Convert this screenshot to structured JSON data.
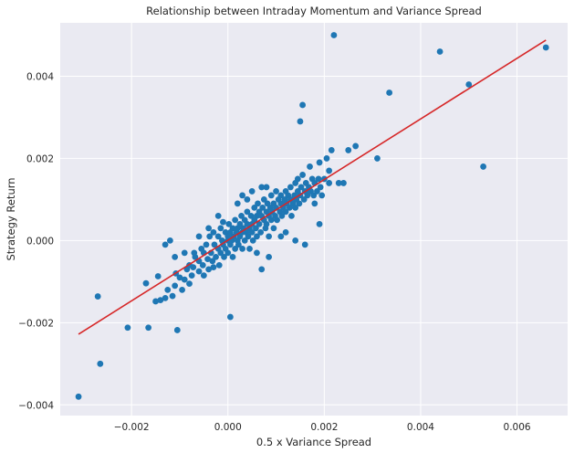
{
  "chart_data": {
    "type": "scatter",
    "title": "Relationship between Intraday Momentum and Variance Spread",
    "xlabel": "0.5 x Variance Spread",
    "ylabel": "Strategy Return",
    "xlim": [
      -0.00348,
      0.00705
    ],
    "ylim": [
      -0.00426,
      0.0053
    ],
    "x_ticks": [
      -0.002,
      0.0,
      0.002,
      0.004,
      0.006
    ],
    "x_tick_labels": [
      "−0.002",
      "0.000",
      "0.002",
      "0.004",
      "0.006"
    ],
    "y_ticks": [
      -0.004,
      -0.002,
      0.0,
      0.002,
      0.004
    ],
    "y_tick_labels": [
      "−0.004",
      "−0.002",
      "0.000",
      "0.002",
      "0.004"
    ],
    "grid": true,
    "background_color": "#eaeaf2",
    "point_color": "#1f77b4",
    "line_color": "#d62728",
    "fit_line": {
      "x": [
        -0.0031,
        0.0066
      ],
      "y": [
        -0.00228,
        0.00488
      ]
    },
    "points": [
      [
        -0.0031,
        -0.0038
      ],
      [
        -0.00265,
        -0.003
      ],
      [
        -0.0027,
        -0.00136
      ],
      [
        -0.00208,
        -0.00212
      ],
      [
        -0.00165,
        -0.00212
      ],
      [
        -0.00105,
        -0.00218
      ],
      [
        5e-05,
        -0.00186
      ],
      [
        -0.0017,
        -0.00104
      ],
      [
        -0.00145,
        -0.00087
      ],
      [
        -0.0015,
        -0.00148
      ],
      [
        -0.0014,
        -0.00145
      ],
      [
        -0.0013,
        -0.0014
      ],
      [
        -0.00125,
        -0.0012
      ],
      [
        -0.00115,
        -0.00135
      ],
      [
        -0.0011,
        -0.0011
      ],
      [
        -0.00108,
        -0.0008
      ],
      [
        -0.001,
        -0.0009
      ],
      [
        -0.00095,
        -0.0012
      ],
      [
        -0.0009,
        -0.00095
      ],
      [
        -0.00085,
        -0.0007
      ],
      [
        -0.0008,
        -0.0006
      ],
      [
        -0.0008,
        -0.00105
      ],
      [
        -0.00075,
        -0.00085
      ],
      [
        -0.00072,
        -0.00065
      ],
      [
        -0.0007,
        -0.0003
      ],
      [
        -0.00068,
        -0.0004
      ],
      [
        -0.0006,
        -0.0005
      ],
      [
        -0.0006,
        -0.00075
      ],
      [
        -0.00055,
        -0.0002
      ],
      [
        -0.00052,
        -0.0006
      ],
      [
        -0.0005,
        -0.0003
      ],
      [
        -0.0005,
        -0.00085
      ],
      [
        -0.00045,
        -0.0001
      ],
      [
        -0.00042,
        -0.00045
      ],
      [
        -0.0004,
        -0.0007
      ],
      [
        -0.00038,
        0.0001
      ],
      [
        -0.00035,
        -0.0003
      ],
      [
        -0.00032,
        -0.0005
      ],
      [
        -0.0003,
        0.0002
      ],
      [
        -0.0003,
        -0.00065
      ],
      [
        -0.00028,
        -0.0001
      ],
      [
        -0.00025,
        -0.0004
      ],
      [
        -0.0002,
        0.0001
      ],
      [
        -0.0002,
        -0.0002
      ],
      [
        -0.00018,
        -0.0006
      ],
      [
        -0.00015,
        0.0003
      ],
      [
        -0.00015,
        -0.0003
      ],
      [
        -0.00012,
        0.0
      ],
      [
        -0.0001,
        -0.0001
      ],
      [
        -0.0001,
        0.00045
      ],
      [
        -8e-05,
        -0.0004
      ],
      [
        -5e-05,
        0.0002
      ],
      [
        -5e-05,
        -0.0002
      ],
      [
        0.0,
        0.0
      ],
      [
        0.0,
        0.0001
      ],
      [
        0.0,
        -0.0003
      ],
      [
        2e-05,
        0.0004
      ],
      [
        5e-05,
        -0.0001
      ],
      [
        5e-05,
        0.0002
      ],
      [
        8e-05,
        0.0
      ],
      [
        0.0001,
        -0.0004
      ],
      [
        0.0001,
        0.0003
      ],
      [
        0.00012,
        0.0001
      ],
      [
        0.00015,
        -0.0002
      ],
      [
        0.00015,
        0.0005
      ],
      [
        0.00018,
        0.0002
      ],
      [
        0.0002,
        0.0
      ],
      [
        0.0002,
        0.0003
      ],
      [
        0.00022,
        -0.0001
      ],
      [
        0.00025,
        0.0004
      ],
      [
        0.00025,
        0.0001
      ],
      [
        0.00028,
        0.0006
      ],
      [
        0.0003,
        0.0002
      ],
      [
        0.0003,
        -0.0002
      ],
      [
        0.00032,
        0.0003
      ],
      [
        0.00035,
        0.0
      ],
      [
        0.00035,
        0.0005
      ],
      [
        0.00038,
        0.0002
      ],
      [
        0.0004,
        0.0007
      ],
      [
        0.0004,
        0.0004
      ],
      [
        0.00042,
        0.0001
      ],
      [
        0.00045,
        0.0003
      ],
      [
        0.00045,
        -0.0002
      ],
      [
        0.00048,
        0.0006
      ],
      [
        0.0005,
        0.0002
      ],
      [
        0.0005,
        0.0004
      ],
      [
        0.00052,
        0.0
      ],
      [
        0.00055,
        0.0005
      ],
      [
        0.00055,
        0.0008
      ],
      [
        0.00058,
        0.0003
      ],
      [
        0.0006,
        0.0001
      ],
      [
        0.0006,
        0.0006
      ],
      [
        0.00062,
        0.0009
      ],
      [
        0.00065,
        0.0004
      ],
      [
        0.00065,
        0.0007
      ],
      [
        0.00068,
        0.0002
      ],
      [
        0.0007,
        -0.0007
      ],
      [
        0.0007,
        0.0006
      ],
      [
        0.00072,
        0.0008
      ],
      [
        0.00075,
        0.0005
      ],
      [
        0.00075,
        0.001
      ],
      [
        0.00078,
        0.0003
      ],
      [
        0.0008,
        0.0007
      ],
      [
        0.0008,
        0.0004
      ],
      [
        0.00082,
        0.0009
      ],
      [
        0.00085,
        0.0006
      ],
      [
        0.00085,
        0.0001
      ],
      [
        0.00088,
        0.0008
      ],
      [
        0.0009,
        0.0005
      ],
      [
        0.0009,
        0.0011
      ],
      [
        0.00092,
        0.0007
      ],
      [
        0.00095,
        0.0009
      ],
      [
        0.00095,
        0.0003
      ],
      [
        0.00098,
        0.0006
      ],
      [
        0.001,
        0.0008
      ],
      [
        0.001,
        0.0012
      ],
      [
        0.00102,
        0.0005
      ],
      [
        0.00105,
        0.001
      ],
      [
        0.00108,
        0.0007
      ],
      [
        0.0011,
        0.0009
      ],
      [
        0.0011,
        0.0011
      ],
      [
        0.00112,
        0.0006
      ],
      [
        0.00115,
        0.0008
      ],
      [
        0.00118,
        0.001
      ],
      [
        0.0012,
        0.0007
      ],
      [
        0.0012,
        0.0012
      ],
      [
        0.00122,
        0.0009
      ],
      [
        0.00125,
        0.0011
      ],
      [
        0.00128,
        0.0008
      ],
      [
        0.0013,
        0.001
      ],
      [
        0.0013,
        0.0013
      ],
      [
        0.00132,
        0.0006
      ],
      [
        0.00135,
        0.0009
      ],
      [
        0.00138,
        0.0011
      ],
      [
        0.0014,
        0.0014
      ],
      [
        0.0014,
        0.0008
      ],
      [
        0.00142,
        0.001
      ],
      [
        0.00145,
        0.0012
      ],
      [
        0.00145,
        0.0015
      ],
      [
        0.00148,
        0.0009
      ],
      [
        0.0015,
        0.0011
      ],
      [
        0.0015,
        0.0029
      ],
      [
        0.00152,
        0.0013
      ],
      [
        0.00155,
        0.0033
      ],
      [
        0.00155,
        0.0016
      ],
      [
        0.00158,
        0.001
      ],
      [
        0.0016,
        0.0012
      ],
      [
        0.00162,
        0.0014
      ],
      [
        0.00165,
        0.0011
      ],
      [
        0.00168,
        0.0013
      ],
      [
        0.0017,
        0.0018
      ],
      [
        0.00172,
        0.0012
      ],
      [
        0.00175,
        0.0015
      ],
      [
        0.00178,
        0.0011
      ],
      [
        0.0018,
        0.0014
      ],
      [
        0.0018,
        0.0009
      ],
      [
        0.00185,
        0.0012
      ],
      [
        0.00188,
        0.0015
      ],
      [
        0.0019,
        0.0019
      ],
      [
        0.00192,
        0.0013
      ],
      [
        0.00195,
        0.0011
      ],
      [
        0.002,
        0.0015
      ],
      [
        0.00205,
        0.002
      ],
      [
        0.0021,
        0.0014
      ],
      [
        0.0021,
        0.0017
      ],
      [
        0.00215,
        0.0022
      ],
      [
        0.0022,
        0.005
      ],
      [
        0.0023,
        0.0014
      ],
      [
        0.0024,
        0.0014
      ],
      [
        0.0025,
        0.0022
      ],
      [
        0.00265,
        0.0023
      ],
      [
        0.0031,
        0.002
      ],
      [
        0.00335,
        0.0036
      ],
      [
        0.0044,
        0.0046
      ],
      [
        0.005,
        0.0038
      ],
      [
        0.0053,
        0.0018
      ],
      [
        0.0066,
        0.0047
      ],
      [
        -0.0013,
        -0.0001
      ],
      [
        -0.0012,
        0.0
      ],
      [
        -0.0011,
        -0.0004
      ],
      [
        -0.0009,
        -0.0003
      ],
      [
        0.0006,
        -0.0003
      ],
      [
        0.00085,
        -0.0004
      ],
      [
        0.0012,
        0.0002
      ],
      [
        0.0016,
        -0.0001
      ],
      [
        0.0019,
        0.0004
      ],
      [
        0.0008,
        0.0013
      ],
      [
        0.0004,
        0.001
      ],
      [
        0.0005,
        0.0012
      ],
      [
        -0.0002,
        0.0006
      ],
      [
        0.0002,
        0.0009
      ],
      [
        0.0011,
        0.0001
      ],
      [
        0.0014,
        0.0
      ],
      [
        -0.0006,
        0.0001
      ],
      [
        -0.0004,
        0.0003
      ],
      [
        0.0003,
        0.0011
      ],
      [
        0.0007,
        0.0013
      ]
    ]
  }
}
